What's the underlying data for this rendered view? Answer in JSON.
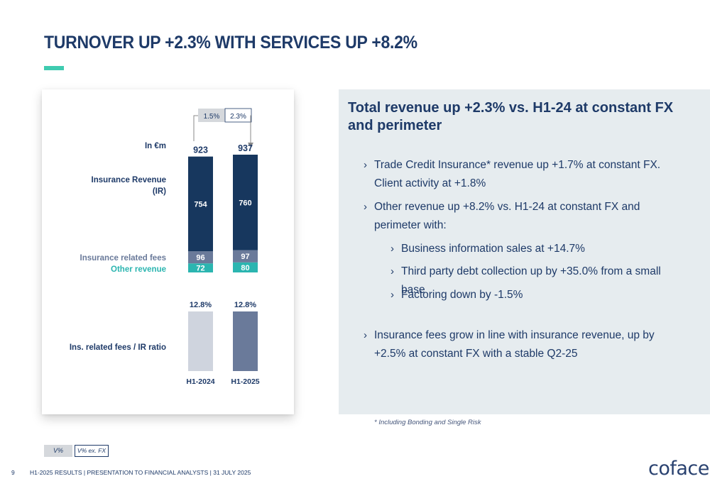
{
  "header": {
    "title": "TURNOVER UP +2.3% WITH SERVICES UP +8.2%"
  },
  "chart_data": {
    "type": "bar",
    "unit_label": "In €m",
    "categories": [
      "H1-2024",
      "H1-2025"
    ],
    "totals": [
      923,
      937
    ],
    "series": [
      {
        "name": "Insurance Revenue (IR)",
        "values": [
          754,
          760
        ],
        "color": "#17375e"
      },
      {
        "name": "Insurance related fees",
        "values": [
          96,
          97
        ],
        "color": "#6a7a9a"
      },
      {
        "name": "Other revenue",
        "values": [
          72,
          80
        ],
        "color": "#2bb5b0"
      }
    ],
    "series_labels": {
      "ir_line1": "Insurance Revenue",
      "ir_line2": "(IR)",
      "fees": "Insurance related fees",
      "other": "Other revenue"
    },
    "growth": {
      "v": "1.5%",
      "v_ex_fx": "2.3%"
    },
    "ratio": {
      "label": "Ins. related fees / IR ratio",
      "values": [
        12.8,
        12.8
      ],
      "value_labels": [
        "12.8%",
        "12.8%"
      ],
      "colors": [
        "#cfd4de",
        "#6a7a9a"
      ]
    }
  },
  "panel": {
    "title": "Total revenue up +2.3% vs. H1-24 at constant FX and perimeter",
    "bullet_icon": "›",
    "bullets": [
      "Trade Credit Insurance* revenue up +1.7% at constant FX. Client activity at +1.8%",
      "Other revenue up +8.2% vs. H1-24 at constant FX and perimeter with:",
      "Business information sales at +14.7%",
      "Third party debt collection up by +35.0% from a small base",
      "Factoring down by -1.5%",
      "Insurance fees grow in line with insurance revenue, up by +2.5% at constant FX with a stable Q2-25"
    ],
    "footnote": "* Including Bonding and Single Risk"
  },
  "legend": {
    "v": "V%",
    "v_ex_fx": "V% ex. FX"
  },
  "footer": {
    "page": "9",
    "text": "H1-2025 RESULTS  |  PRESENTATION TO FINANCIAL ANALYSTS  |  31 JULY 2025",
    "logo": "coface"
  }
}
